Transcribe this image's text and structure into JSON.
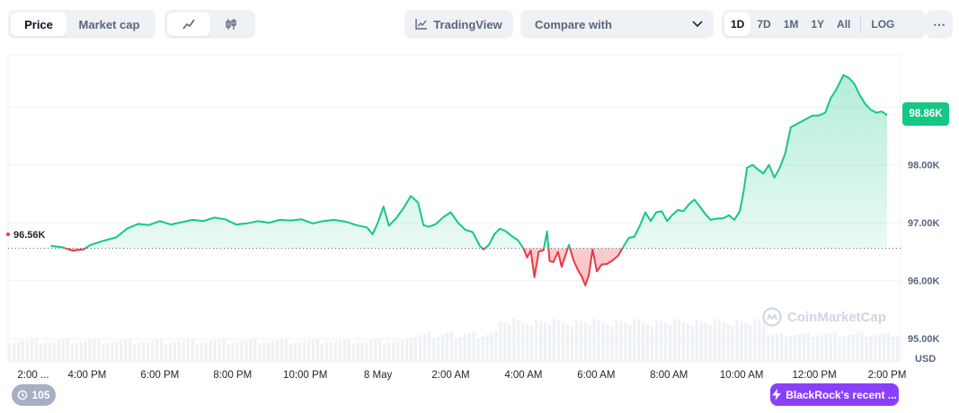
{
  "tabs": {
    "price": "Price",
    "market_cap": "Market cap"
  },
  "chart_types": {
    "line_icon": "line-chart-icon",
    "candle_icon": "candlestick-icon"
  },
  "toolbar": {
    "tradingview": "TradingView",
    "compare": "Compare with"
  },
  "ranges": [
    "1D",
    "7D",
    "1M",
    "1Y",
    "All"
  ],
  "log_label": "LOG",
  "more_label": "⋯",
  "colors": {
    "up": "#16c784",
    "down": "#ea3943",
    "accent": "#8a3ffc"
  },
  "chart_data": {
    "type": "line",
    "y_ticks": [
      "98.00K",
      "97.00K",
      "96.00K",
      "95.00K"
    ],
    "y_range": [
      94600,
      99900
    ],
    "baseline_label": "96.56K",
    "baseline": 96560,
    "last_price_label": "98.86K",
    "currency_label": "USD",
    "x_ticks": [
      "2:00 ...",
      "4:00 PM",
      "6:00 PM",
      "8:00 PM",
      "10:00 PM",
      "8 May",
      "2:00 AM",
      "4:00 AM",
      "6:00 AM",
      "8:00 AM",
      "10:00 AM",
      "12:00 PM",
      "2:00 PM"
    ],
    "x_range_hours": [
      0,
      24
    ],
    "points": [
      [
        1.0,
        96600
      ],
      [
        1.3,
        96580
      ],
      [
        1.6,
        96520
      ],
      [
        1.9,
        96540
      ],
      [
        2.1,
        96620
      ],
      [
        2.4,
        96680
      ],
      [
        2.8,
        96750
      ],
      [
        3.1,
        96900
      ],
      [
        3.4,
        96980
      ],
      [
        3.7,
        96960
      ],
      [
        4.0,
        97030
      ],
      [
        4.3,
        96970
      ],
      [
        4.6,
        97010
      ],
      [
        4.9,
        97050
      ],
      [
        5.2,
        97030
      ],
      [
        5.5,
        97090
      ],
      [
        5.8,
        97060
      ],
      [
        6.1,
        96970
      ],
      [
        6.4,
        96990
      ],
      [
        6.7,
        97030
      ],
      [
        7.0,
        97000
      ],
      [
        7.3,
        97050
      ],
      [
        7.6,
        97040
      ],
      [
        7.9,
        97060
      ],
      [
        8.2,
        96990
      ],
      [
        8.5,
        97030
      ],
      [
        8.8,
        97050
      ],
      [
        9.1,
        97020
      ],
      [
        9.4,
        96960
      ],
      [
        9.7,
        96920
      ],
      [
        9.85,
        96800
      ],
      [
        10.0,
        97010
      ],
      [
        10.15,
        97280
      ],
      [
        10.3,
        96950
      ],
      [
        10.5,
        97080
      ],
      [
        10.7,
        97250
      ],
      [
        10.9,
        97460
      ],
      [
        11.1,
        97350
      ],
      [
        11.25,
        96960
      ],
      [
        11.4,
        96930
      ],
      [
        11.6,
        96980
      ],
      [
        11.8,
        97100
      ],
      [
        12.0,
        97180
      ],
      [
        12.2,
        97000
      ],
      [
        12.4,
        96880
      ],
      [
        12.6,
        96840
      ],
      [
        12.8,
        96600
      ],
      [
        12.9,
        96540
      ],
      [
        13.05,
        96620
      ],
      [
        13.2,
        96800
      ],
      [
        13.35,
        96900
      ],
      [
        13.5,
        96860
      ],
      [
        13.7,
        96760
      ],
      [
        13.85,
        96700
      ],
      [
        14.0,
        96560
      ],
      [
        14.1,
        96400
      ],
      [
        14.2,
        96520
      ],
      [
        14.3,
        96060
      ],
      [
        14.42,
        96500
      ],
      [
        14.55,
        96530
      ],
      [
        14.65,
        96850
      ],
      [
        14.72,
        96340
      ],
      [
        14.82,
        96320
      ],
      [
        14.95,
        96500
      ],
      [
        15.05,
        96240
      ],
      [
        15.15,
        96430
      ],
      [
        15.25,
        96620
      ],
      [
        15.38,
        96350
      ],
      [
        15.5,
        96180
      ],
      [
        15.6,
        96080
      ],
      [
        15.7,
        95920
      ],
      [
        15.8,
        96100
      ],
      [
        15.9,
        96540
      ],
      [
        16.02,
        96160
      ],
      [
        16.15,
        96280
      ],
      [
        16.3,
        96290
      ],
      [
        16.45,
        96350
      ],
      [
        16.6,
        96430
      ],
      [
        16.75,
        96590
      ],
      [
        16.9,
        96740
      ],
      [
        17.05,
        96760
      ],
      [
        17.2,
        96950
      ],
      [
        17.35,
        97180
      ],
      [
        17.5,
        97030
      ],
      [
        17.65,
        97180
      ],
      [
        17.8,
        97200
      ],
      [
        17.95,
        97030
      ],
      [
        18.1,
        97140
      ],
      [
        18.25,
        97220
      ],
      [
        18.4,
        97200
      ],
      [
        18.55,
        97320
      ],
      [
        18.7,
        97400
      ],
      [
        18.85,
        97280
      ],
      [
        19.0,
        97150
      ],
      [
        19.15,
        97050
      ],
      [
        19.3,
        97070
      ],
      [
        19.5,
        97080
      ],
      [
        19.65,
        97130
      ],
      [
        19.8,
        97050
      ],
      [
        19.95,
        97200
      ],
      [
        20.05,
        97530
      ],
      [
        20.15,
        97950
      ],
      [
        20.3,
        98000
      ],
      [
        20.45,
        97920
      ],
      [
        20.6,
        97850
      ],
      [
        20.75,
        98000
      ],
      [
        20.9,
        97780
      ],
      [
        21.05,
        97950
      ],
      [
        21.2,
        98200
      ],
      [
        21.35,
        98650
      ],
      [
        21.5,
        98700
      ],
      [
        21.65,
        98750
      ],
      [
        21.8,
        98800
      ],
      [
        21.95,
        98850
      ],
      [
        22.1,
        98850
      ],
      [
        22.3,
        98900
      ],
      [
        22.45,
        99150
      ],
      [
        22.6,
        99300
      ],
      [
        22.8,
        99550
      ],
      [
        22.95,
        99500
      ],
      [
        23.1,
        99400
      ],
      [
        23.25,
        99200
      ],
      [
        23.4,
        99050
      ],
      [
        23.55,
        98950
      ],
      [
        23.7,
        98900
      ],
      [
        23.85,
        98920
      ],
      [
        24.0,
        98860
      ]
    ],
    "grid": true,
    "legend": "none",
    "watermark": "CoinMarketCap"
  },
  "footer": {
    "history_count": "105",
    "news": "BlackRock's recent ..."
  }
}
